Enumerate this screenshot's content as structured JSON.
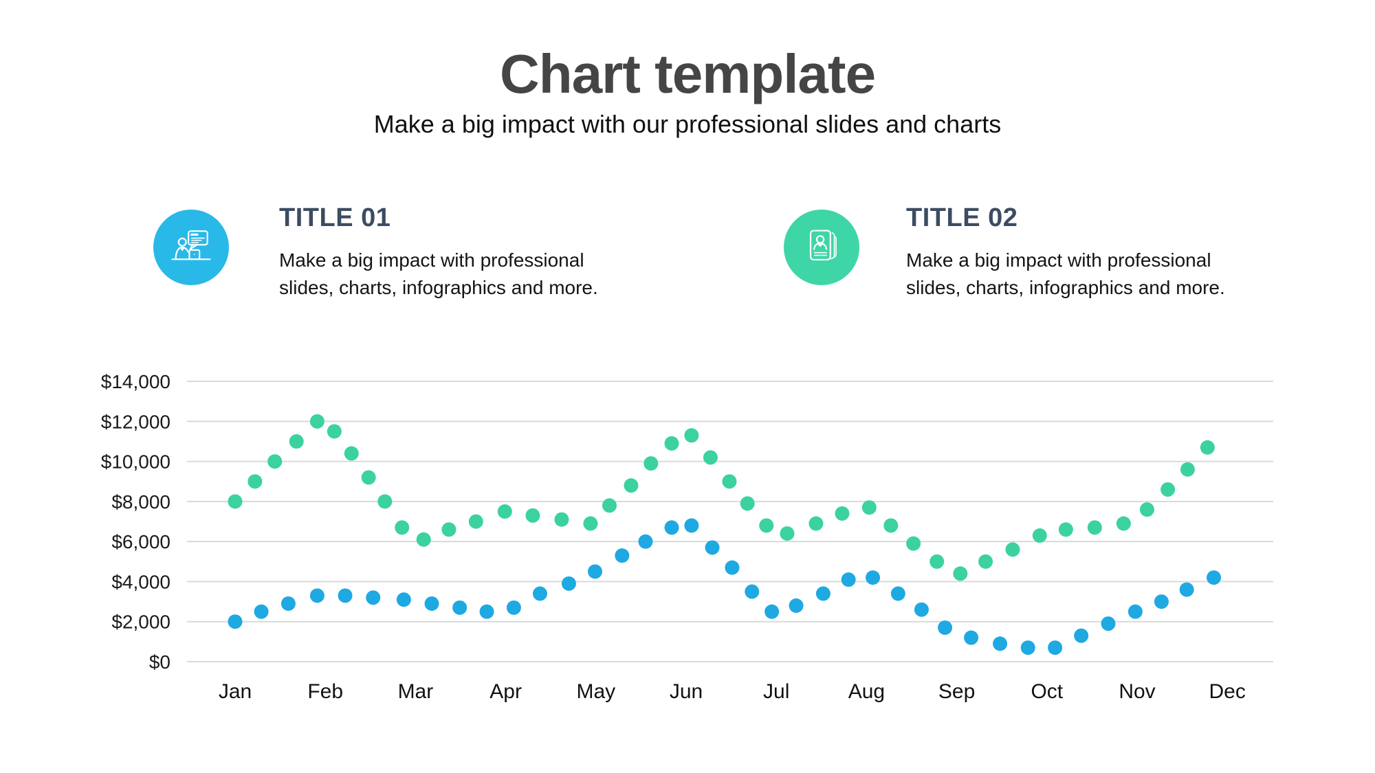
{
  "header": {
    "title": "Chart template",
    "subtitle": "Make a big impact with our professional slides and charts"
  },
  "features": [
    {
      "title": "TITLE 01",
      "description": "Make a big impact with professional slides, charts, infographics and more.",
      "icon": "person-at-laptop-with-speech-bubble-icon",
      "circle_color": "#29B9E8"
    },
    {
      "title": "TITLE 02",
      "description": "Make a big impact with professional slides, charts, infographics and more.",
      "icon": "resume-document-icon",
      "circle_color": "#3FD6A7"
    }
  ],
  "chart_data": {
    "type": "scatter",
    "title": "",
    "x_axis": {
      "labels": [
        "Jan",
        "Feb",
        "Mar",
        "Apr",
        "May",
        "Jun",
        "Jul",
        "Aug",
        "Sep",
        "Oct",
        "Nov",
        "Dec"
      ],
      "unit": "months, x value 0 = Jan through 11 = Dec"
    },
    "y_axis": {
      "tick_labels_top_to_bottom": [
        "$14,000",
        "$12,000",
        "$10,000",
        "$8,000",
        "$6,000",
        "$4,000",
        "$2,000",
        "$0"
      ],
      "min": 0,
      "max": 14000,
      "step": 2000
    },
    "grid": {
      "orientation": "horizontal-only",
      "color": "#D9D9D9"
    },
    "legend": "none",
    "series": [
      {
        "color_name": "green",
        "color": "#3BD2A0",
        "points": [
          [
            0.0,
            8000
          ],
          [
            0.22,
            9000
          ],
          [
            0.44,
            10000
          ],
          [
            0.68,
            11000
          ],
          [
            0.91,
            12000
          ],
          [
            1.1,
            11500
          ],
          [
            1.29,
            10400
          ],
          [
            1.48,
            9200
          ],
          [
            1.66,
            8000
          ],
          [
            1.85,
            6700
          ],
          [
            2.09,
            6100
          ],
          [
            2.37,
            6600
          ],
          [
            2.67,
            7000
          ],
          [
            2.99,
            7500
          ],
          [
            3.3,
            7300
          ],
          [
            3.62,
            7100
          ],
          [
            3.94,
            6900
          ],
          [
            4.15,
            7800
          ],
          [
            4.39,
            8800
          ],
          [
            4.61,
            9900
          ],
          [
            4.84,
            10900
          ],
          [
            5.06,
            11300
          ],
          [
            5.27,
            10200
          ],
          [
            5.48,
            9000
          ],
          [
            5.68,
            7900
          ],
          [
            5.89,
            6800
          ],
          [
            6.12,
            6400
          ],
          [
            6.44,
            6900
          ],
          [
            6.73,
            7400
          ],
          [
            7.03,
            7700
          ],
          [
            7.27,
            6800
          ],
          [
            7.52,
            5900
          ],
          [
            7.78,
            5000
          ],
          [
            8.04,
            4400
          ],
          [
            8.32,
            5000
          ],
          [
            8.62,
            5600
          ],
          [
            8.92,
            6300
          ],
          [
            9.21,
            6600
          ],
          [
            9.53,
            6700
          ],
          [
            9.85,
            6900
          ],
          [
            10.11,
            7600
          ],
          [
            10.34,
            8600
          ],
          [
            10.56,
            9600
          ],
          [
            10.78,
            10700
          ]
        ]
      },
      {
        "color_name": "blue",
        "color": "#1EA9E2",
        "points": [
          [
            0.0,
            2000
          ],
          [
            0.29,
            2500
          ],
          [
            0.59,
            2900
          ],
          [
            0.91,
            3300
          ],
          [
            1.22,
            3300
          ],
          [
            1.53,
            3200
          ],
          [
            1.87,
            3100
          ],
          [
            2.18,
            2900
          ],
          [
            2.49,
            2700
          ],
          [
            2.79,
            2500
          ],
          [
            3.09,
            2700
          ],
          [
            3.38,
            3400
          ],
          [
            3.7,
            3900
          ],
          [
            3.99,
            4500
          ],
          [
            4.29,
            5300
          ],
          [
            4.55,
            6000
          ],
          [
            4.84,
            6700
          ],
          [
            5.06,
            6800
          ],
          [
            5.29,
            5700
          ],
          [
            5.51,
            4700
          ],
          [
            5.73,
            3500
          ],
          [
            5.95,
            2500
          ],
          [
            6.22,
            2800
          ],
          [
            6.52,
            3400
          ],
          [
            6.8,
            4100
          ],
          [
            7.07,
            4200
          ],
          [
            7.35,
            3400
          ],
          [
            7.61,
            2600
          ],
          [
            7.87,
            1700
          ],
          [
            8.16,
            1200
          ],
          [
            8.48,
            900
          ],
          [
            8.79,
            700
          ],
          [
            9.09,
            700
          ],
          [
            9.38,
            1300
          ],
          [
            9.68,
            1900
          ],
          [
            9.98,
            2500
          ],
          [
            10.27,
            3000
          ],
          [
            10.55,
            3600
          ],
          [
            10.85,
            4200
          ]
        ]
      }
    ]
  }
}
